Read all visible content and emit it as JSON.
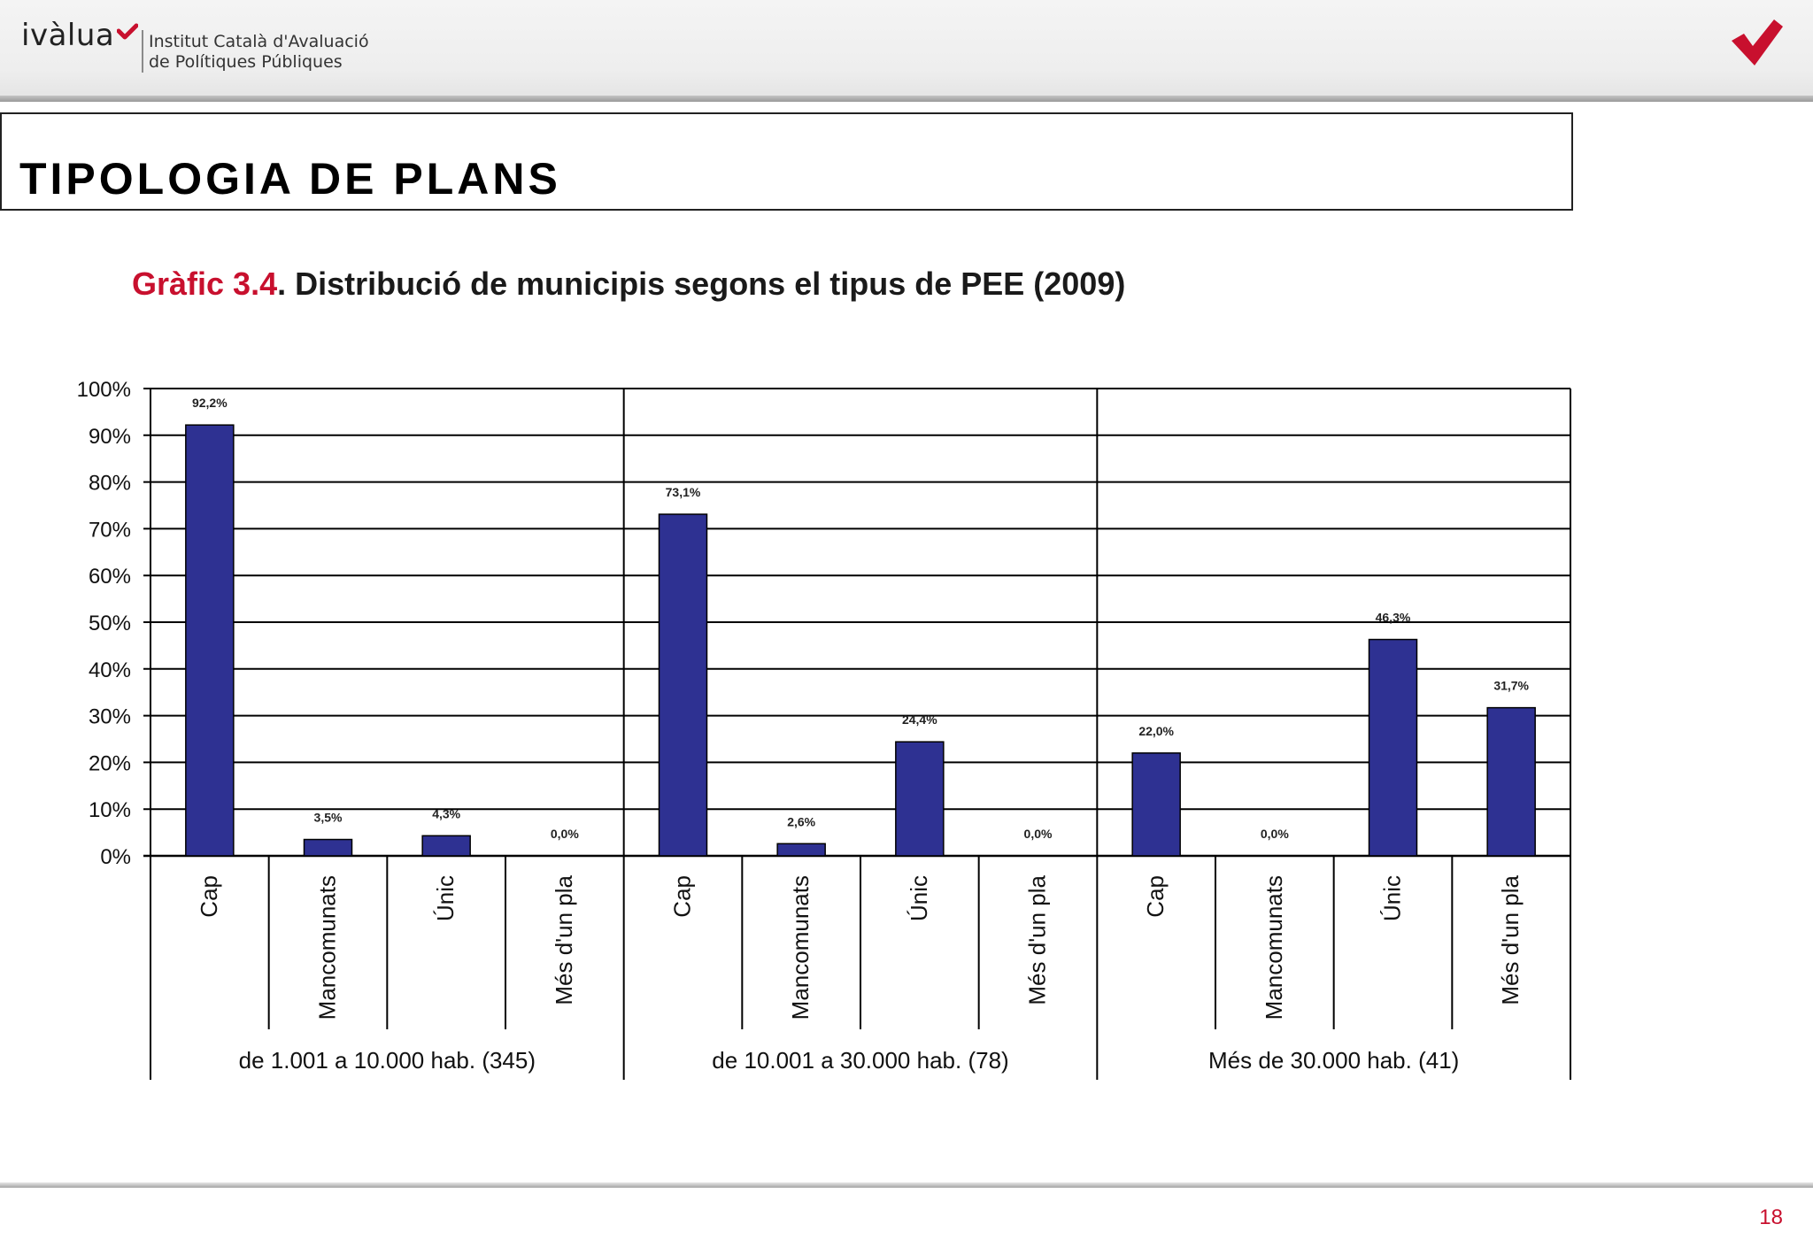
{
  "header": {
    "logo_text": "ivàlua",
    "institution_line1": "Institut Català d'Avaluació",
    "institution_line2": "de Polítiques Públiques"
  },
  "slide": {
    "title": "TIPOLOGIA DE PLANS",
    "chart_title_number": "Gràfic 3.4",
    "chart_title_text": ". Distribució de municipis segons el tipus de PEE (2009)",
    "page_number": "18"
  },
  "colors": {
    "bar": "#2e3192",
    "accent": "#c8102e"
  },
  "chart_data": {
    "type": "bar",
    "y_ticks": [
      "0%",
      "10%",
      "20%",
      "30%",
      "40%",
      "50%",
      "60%",
      "70%",
      "80%",
      "90%",
      "100%"
    ],
    "ylim": [
      0,
      100
    ],
    "grid": true,
    "groups": [
      {
        "label": "de 1.001 a 10.000 hab. (345)",
        "categories": [
          "Cap",
          "Mancomunats",
          "Únic",
          "Més d'un pla"
        ],
        "values": [
          92.2,
          3.5,
          4.3,
          0.0
        ],
        "value_labels": [
          "92,2%",
          "3,5%",
          "4,3%",
          "0,0%"
        ]
      },
      {
        "label": "de 10.001 a 30.000 hab. (78)",
        "categories": [
          "Cap",
          "Mancomunats",
          "Únic",
          "Més d'un pla"
        ],
        "values": [
          73.1,
          2.6,
          24.4,
          0.0
        ],
        "value_labels": [
          "73,1%",
          "2,6%",
          "24,4%",
          "0,0%"
        ]
      },
      {
        "label": "Més de 30.000 hab. (41)",
        "categories": [
          "Cap",
          "Mancomunats",
          "Únic",
          "Més d'un pla"
        ],
        "values": [
          22.0,
          0.0,
          46.3,
          31.7
        ],
        "value_labels": [
          "22,0%",
          "0,0%",
          "46,3%",
          "31,7%"
        ]
      }
    ]
  }
}
